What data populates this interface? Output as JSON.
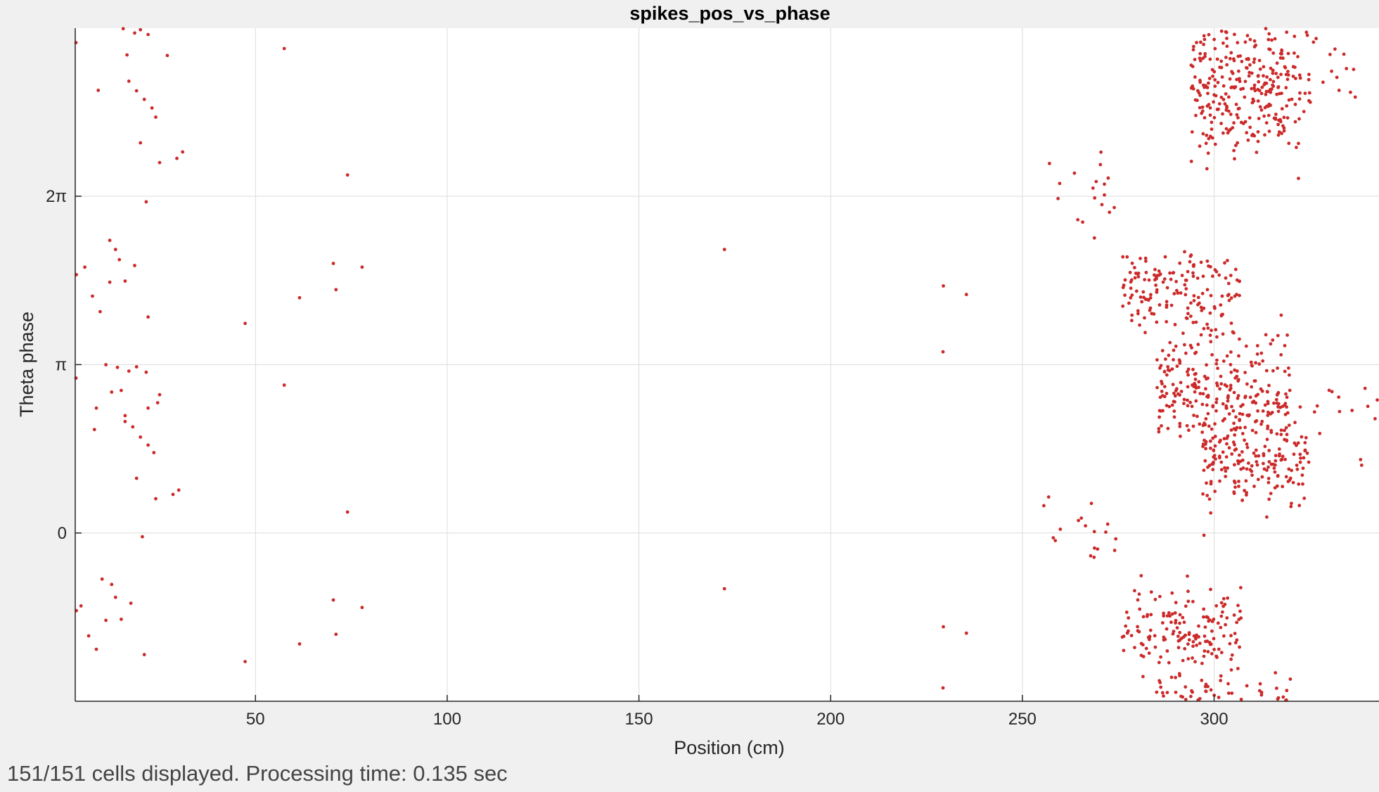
{
  "status": {
    "text": "151/151 cells displayed. Processing time: 0.135 sec"
  },
  "colors": {
    "marker": "#cc2a2a",
    "grid": "#dcdcdc",
    "axis": "#262626",
    "background": "#f0f0f0",
    "plot_bg": "#ffffff"
  },
  "chart_data": {
    "type": "scatter",
    "title": "spikes_pos_vs_phase",
    "xlabel": "Position (cm)",
    "ylabel": "Theta phase",
    "xlim": [
      3,
      343
    ],
    "ylim": [
      -3.14,
      9.42
    ],
    "grid": true,
    "x_ticks": [
      50,
      100,
      150,
      200,
      250,
      300
    ],
    "x_tick_labels": [
      "50",
      "100",
      "150",
      "200",
      "250",
      "300"
    ],
    "y_ticks": [
      0,
      3.1416,
      6.2832
    ],
    "y_tick_labels": [
      "0",
      "π",
      "2π"
    ],
    "series": [
      {
        "points": [
          [
            57.5,
            9.04
          ],
          [
            57.5,
            2.76
          ],
          [
            74.0,
            6.68
          ],
          [
            74.0,
            0.39
          ],
          [
            70.3,
            5.03
          ],
          [
            70.3,
            -1.25
          ],
          [
            77.8,
            4.96
          ],
          [
            77.8,
            -1.39
          ],
          [
            71.0,
            4.54
          ],
          [
            71.0,
            -1.89
          ],
          [
            61.5,
            4.39
          ],
          [
            61.5,
            -2.07
          ],
          [
            47.3,
            3.91
          ],
          [
            47.3,
            -2.4
          ],
          [
            172.3,
            5.29
          ],
          [
            172.3,
            -1.04
          ],
          [
            229.4,
            4.61
          ],
          [
            229.4,
            -1.75
          ],
          [
            235.4,
            4.45
          ],
          [
            235.4,
            -1.87
          ],
          [
            229.3,
            3.38
          ],
          [
            229.3,
            -2.89
          ],
          [
            3.2,
            9.15
          ],
          [
            3.2,
            2.89
          ],
          [
            3.3,
            4.82
          ],
          [
            3.3,
            -1.45
          ]
        ],
        "seeded_points": [
          [
            10.5,
            9.45
          ],
          [
            11.0,
            3.14
          ],
          [
            15.5,
            9.41
          ],
          [
            14.0,
            3.09
          ],
          [
            18.5,
            9.33
          ],
          [
            17.0,
            3.02
          ],
          [
            20.0,
            9.39
          ],
          [
            19.0,
            3.1
          ],
          [
            22.0,
            9.3
          ],
          [
            21.5,
            3.0
          ],
          [
            16.5,
            8.92
          ],
          [
            15.0,
            2.66
          ],
          [
            27.0,
            8.91
          ],
          [
            25.0,
            2.58
          ],
          [
            17.0,
            8.43
          ],
          [
            16.0,
            2.19
          ],
          [
            19.0,
            8.25
          ],
          [
            18.0,
            1.98
          ],
          [
            21.0,
            8.09
          ],
          [
            20.0,
            1.79
          ],
          [
            23.0,
            7.93
          ],
          [
            22.0,
            1.64
          ],
          [
            24.0,
            7.76
          ],
          [
            23.5,
            1.5
          ],
          [
            20.0,
            7.28
          ],
          [
            19.0,
            1.02
          ],
          [
            25.0,
            6.91
          ],
          [
            24.0,
            0.64
          ],
          [
            31.0,
            7.11
          ],
          [
            30.0,
            0.8
          ],
          [
            29.5,
            6.99
          ],
          [
            28.5,
            0.72
          ],
          [
            9.0,
            8.26
          ],
          [
            8.0,
            1.93
          ],
          [
            12.0,
            5.46
          ],
          [
            10.0,
            -0.86
          ],
          [
            14.5,
            5.1
          ],
          [
            13.5,
            -1.2
          ],
          [
            18.5,
            4.99
          ],
          [
            17.5,
            -1.31
          ],
          [
            16.0,
            4.7
          ],
          [
            15.0,
            -1.61
          ],
          [
            12.0,
            4.68
          ],
          [
            11.0,
            -1.63
          ],
          [
            5.5,
            4.96
          ],
          [
            4.5,
            -1.36
          ],
          [
            7.5,
            4.42
          ],
          [
            6.5,
            -1.92
          ],
          [
            9.5,
            4.13
          ],
          [
            8.5,
            -2.17
          ],
          [
            22.0,
            4.03
          ],
          [
            21.0,
            -2.27
          ],
          [
            21.5,
            6.18
          ],
          [
            20.5,
            -0.07
          ],
          [
            13.5,
            5.29
          ],
          [
            12.5,
            -0.96
          ],
          [
            24.5,
            2.43
          ],
          [
            23.5,
            -3.82
          ],
          [
            16.0,
            2.08
          ],
          [
            15.0,
            -4.12
          ],
          [
            22.0,
            2.33
          ],
          [
            21.0,
            -3.96
          ],
          [
            8.5,
            2.33
          ],
          [
            7.5,
            -3.95
          ],
          [
            12.5,
            2.63
          ],
          [
            11.5,
            -3.66
          ]
        ],
        "clusters": [
          {
            "x_range": [
              294,
              325
            ],
            "y_center": 8.35,
            "y_spread": 1.25,
            "count": 330
          },
          {
            "x_range": [
              276,
              307
            ],
            "y_center": 4.5,
            "y_spread": 0.75,
            "count": 160
          },
          {
            "x_range": [
              285,
              320
            ],
            "y_center": 2.7,
            "y_spread": 0.9,
            "count": 260
          },
          {
            "x_range": [
              297,
              325
            ],
            "y_center": 1.3,
            "y_spread": 0.8,
            "count": 180
          },
          {
            "x_range": [
              276,
              307
            ],
            "y_center": -1.8,
            "y_spread": 0.75,
            "count": 160
          },
          {
            "x_range": [
              285,
              320
            ],
            "y_center": -3.3,
            "y_spread": 0.6,
            "count": 140
          },
          {
            "x_range": [
              255,
              275
            ],
            "y_center": 6.3,
            "y_spread": 0.6,
            "count": 18
          },
          {
            "x_range": [
              255,
              275
            ],
            "y_center": 0.0,
            "y_spread": 0.6,
            "count": 18
          },
          {
            "x_range": [
              325,
              343
            ],
            "y_center": 8.5,
            "y_spread": 0.9,
            "count": 14
          },
          {
            "x_range": [
              325,
              343
            ],
            "y_center": 2.3,
            "y_spread": 0.9,
            "count": 14
          }
        ]
      }
    ]
  }
}
